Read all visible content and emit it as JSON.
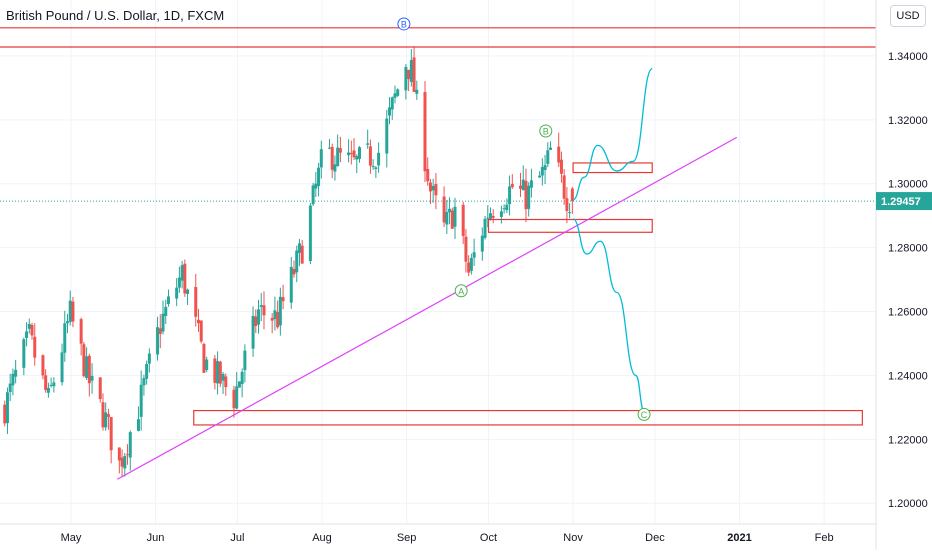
{
  "header": {
    "symbol_title": "British Pound / U.S. Dollar, 1D, FXCM",
    "currency_button": "USD"
  },
  "colors": {
    "bull": "#26a69a",
    "bear": "#ef5350",
    "trendline": "#e040fb",
    "zone": "#e53935",
    "projection": "#00bcd4",
    "price_tag": "#26a69a",
    "wave_b_blue": "#2962ff",
    "wave_green": "#4caf50"
  },
  "chart_data": {
    "type": "candlestick",
    "symbol": "GBP/USD",
    "interval": "1D",
    "source": "FXCM",
    "y_axis": {
      "ticks": [
        "1.34000",
        "1.32000",
        "1.30000",
        "1.28000",
        "1.26000",
        "1.24000",
        "1.22000",
        "1.20000"
      ],
      "tick_values": [
        1.34,
        1.32,
        1.3,
        1.28,
        1.26,
        1.24,
        1.22,
        1.2
      ],
      "range": [
        1.1935,
        1.3575
      ],
      "last_price_label": "1.29457",
      "last_price": 1.29457
    },
    "x_axis": {
      "ticks": [
        "May",
        "Jun",
        "Jul",
        "Aug",
        "Sep",
        "Oct",
        "Nov",
        "Dec",
        "2021",
        "Feb"
      ],
      "tick_dates": [
        "2020-05-01",
        "2020-06-01",
        "2020-07-01",
        "2020-08-01",
        "2020-09-01",
        "2020-10-01",
        "2020-11-01",
        "2020-12-01",
        "2021-01-01",
        "2021-02-01"
      ],
      "range": [
        "2020-04-05",
        "2021-02-20"
      ]
    },
    "anchors": [
      {
        "date": "2020-04-06",
        "close": 1.23
      },
      {
        "date": "2020-04-15",
        "close": 1.252
      },
      {
        "date": "2020-04-22",
        "close": 1.232
      },
      {
        "date": "2020-04-30",
        "close": 1.259
      },
      {
        "date": "2020-05-07",
        "close": 1.238
      },
      {
        "date": "2020-05-13",
        "close": 1.226
      },
      {
        "date": "2020-05-18",
        "close": 1.212
      },
      {
        "date": "2020-05-25",
        "close": 1.23
      },
      {
        "date": "2020-06-02",
        "close": 1.256
      },
      {
        "date": "2020-06-10",
        "close": 1.272
      },
      {
        "date": "2020-06-18",
        "close": 1.245
      },
      {
        "date": "2020-06-29",
        "close": 1.233
      },
      {
        "date": "2020-07-08",
        "close": 1.26
      },
      {
        "date": "2020-07-15",
        "close": 1.258
      },
      {
        "date": "2020-07-24",
        "close": 1.28
      },
      {
        "date": "2020-08-01",
        "close": 1.31
      },
      {
        "date": "2020-08-12",
        "close": 1.306
      },
      {
        "date": "2020-08-21",
        "close": 1.31
      },
      {
        "date": "2020-08-31",
        "close": 1.338
      },
      {
        "date": "2020-09-02",
        "close": 1.335
      },
      {
        "date": "2020-09-09",
        "close": 1.298
      },
      {
        "date": "2020-09-14",
        "close": 1.286
      },
      {
        "date": "2020-09-18",
        "close": 1.292
      },
      {
        "date": "2020-09-23",
        "close": 1.272
      },
      {
        "date": "2020-09-30",
        "close": 1.291
      },
      {
        "date": "2020-10-09",
        "close": 1.299
      },
      {
        "date": "2020-10-14",
        "close": 1.296
      },
      {
        "date": "2020-10-21",
        "close": 1.304
      },
      {
        "date": "2020-10-23",
        "close": 1.31
      },
      {
        "date": "2020-10-29",
        "close": 1.296
      },
      {
        "date": "2020-10-31",
        "close": 1.29457
      }
    ],
    "horizontal_lines": [
      1.3488,
      1.3428
    ],
    "zones": [
      {
        "from": "2020-11-01",
        "to": "2020-11-30",
        "top": 1.3065,
        "bottom": 1.3035
      },
      {
        "from": "2020-10-01",
        "to": "2020-11-30",
        "top": 1.2888,
        "bottom": 1.2848
      },
      {
        "from": "2020-06-15",
        "to": "2021-02-15",
        "top": 1.229,
        "bottom": 1.2245
      }
    ],
    "trendline": {
      "start": [
        "2020-05-18",
        1.2075
      ],
      "end": [
        "2020-12-31",
        1.3145
      ]
    },
    "projection_path": [
      [
        "2020-11-01",
        1.295
      ],
      [
        "2020-11-05",
        1.302
      ],
      [
        "2020-11-10",
        1.312
      ],
      [
        "2020-11-17",
        1.304
      ],
      [
        "2020-11-23",
        1.307
      ],
      [
        "2020-11-30",
        1.336
      ]
    ],
    "projection_alt_path": [
      [
        "2020-11-01",
        1.289
      ],
      [
        "2020-11-06",
        1.278
      ],
      [
        "2020-11-11",
        1.282
      ],
      [
        "2020-11-17",
        1.266
      ],
      [
        "2020-11-24",
        1.24
      ],
      [
        "2020-11-27",
        1.229
      ]
    ],
    "wave_labels": [
      {
        "text": "B",
        "date": "2020-08-31",
        "price": 1.35,
        "color": "blue"
      },
      {
        "text": "A",
        "date": "2020-09-21",
        "price": 1.2665,
        "color": "green"
      },
      {
        "text": "B",
        "date": "2020-10-22",
        "price": 1.3165,
        "color": "green"
      },
      {
        "text": "C",
        "date": "2020-11-27",
        "price": 1.2278,
        "color": "green"
      }
    ]
  }
}
